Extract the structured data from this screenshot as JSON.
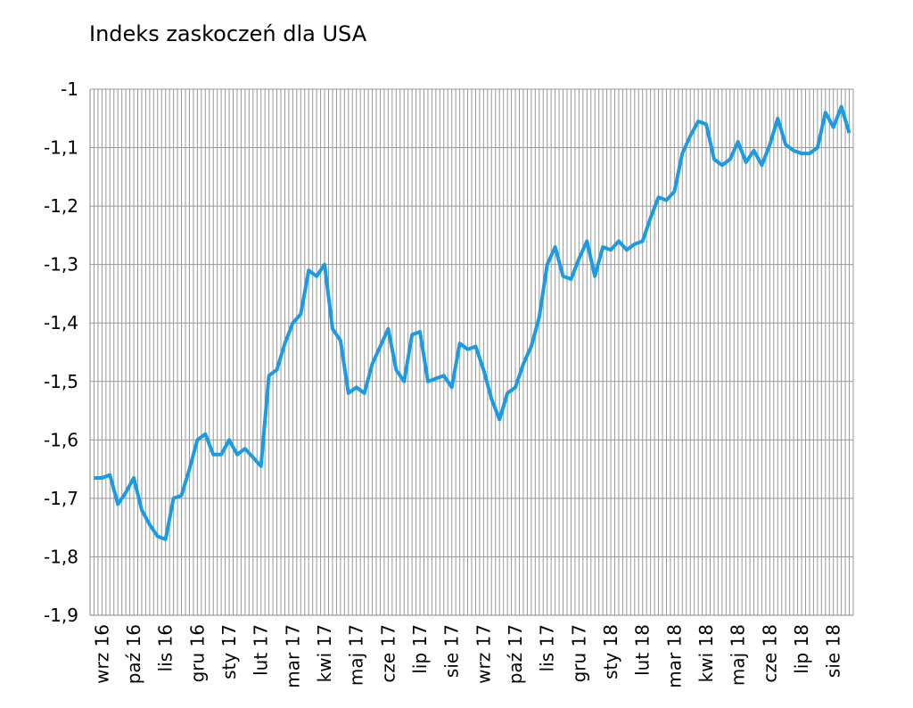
{
  "chart_data": {
    "type": "line",
    "title": "Indeks zaskoczeń dla USA",
    "categories": [
      null,
      "wrz 16",
      null,
      null,
      null,
      "paź 16",
      null,
      null,
      null,
      "lis 16",
      null,
      null,
      null,
      "gru 16",
      null,
      null,
      null,
      "sty 17",
      null,
      null,
      null,
      "lut 17",
      null,
      null,
      null,
      "mar 17",
      null,
      null,
      null,
      "kwi 17",
      null,
      null,
      null,
      "maj 17",
      null,
      null,
      null,
      "cze 17",
      null,
      null,
      null,
      "lip 17",
      null,
      null,
      null,
      "sie 17",
      null,
      null,
      null,
      "wrz 17",
      null,
      null,
      null,
      "paź 17",
      null,
      null,
      null,
      "lis 17",
      null,
      null,
      null,
      "gru 17",
      null,
      null,
      null,
      "sty 18",
      null,
      null,
      null,
      "lut 18",
      null,
      null,
      null,
      "mar 18",
      null,
      null,
      null,
      "kwi 18",
      null,
      null,
      null,
      "maj 18",
      null,
      null,
      null,
      "cze 18",
      null,
      null,
      null,
      "lip 18",
      null,
      null,
      null,
      "sie 18",
      null,
      null
    ],
    "values": [
      -1.665,
      -1.665,
      -1.66,
      -1.71,
      -1.69,
      -1.665,
      -1.72,
      -1.745,
      -1.765,
      -1.77,
      -1.7,
      -1.695,
      -1.65,
      -1.6,
      -1.59,
      -1.625,
      -1.625,
      -1.6,
      -1.625,
      -1.615,
      -1.63,
      -1.645,
      -1.49,
      -1.48,
      -1.435,
      -1.4,
      -1.385,
      -1.31,
      -1.32,
      -1.3,
      -1.41,
      -1.43,
      -1.52,
      -1.51,
      -1.52,
      -1.47,
      -1.44,
      -1.41,
      -1.48,
      -1.5,
      -1.42,
      -1.415,
      -1.5,
      -1.495,
      -1.49,
      -1.51,
      -1.435,
      -1.445,
      -1.44,
      -1.48,
      -1.53,
      -1.565,
      -1.52,
      -1.51,
      -1.47,
      -1.44,
      -1.39,
      -1.3,
      -1.27,
      -1.32,
      -1.325,
      -1.29,
      -1.26,
      -1.32,
      -1.27,
      -1.275,
      -1.26,
      -1.275,
      -1.265,
      -1.26,
      -1.22,
      -1.185,
      -1.19,
      -1.175,
      -1.11,
      -1.08,
      -1.055,
      -1.06,
      -1.12,
      -1.13,
      -1.12,
      -1.09,
      -1.125,
      -1.105,
      -1.13,
      -1.095,
      -1.05,
      -1.095,
      -1.105,
      -1.11,
      -1.11,
      -1.1,
      -1.04,
      -1.065,
      -1.03,
      -1.075
    ],
    "color": "#1a9be6",
    "ylim": [
      -1.9,
      -1
    ],
    "yticks": [
      {
        "value": -1.9,
        "label": "-1,9"
      },
      {
        "value": -1.8,
        "label": "-1,8"
      },
      {
        "value": -1.7,
        "label": "-1,7"
      },
      {
        "value": -1.6,
        "label": "-1,6"
      },
      {
        "value": -1.5,
        "label": "-1,5"
      },
      {
        "value": -1.4,
        "label": "-1,4"
      },
      {
        "value": -1.3,
        "label": "-1,3"
      },
      {
        "value": -1.2,
        "label": "-1,2"
      },
      {
        "value": -1.1,
        "label": "-1,1"
      },
      -1
    ],
    "grid": true
  }
}
